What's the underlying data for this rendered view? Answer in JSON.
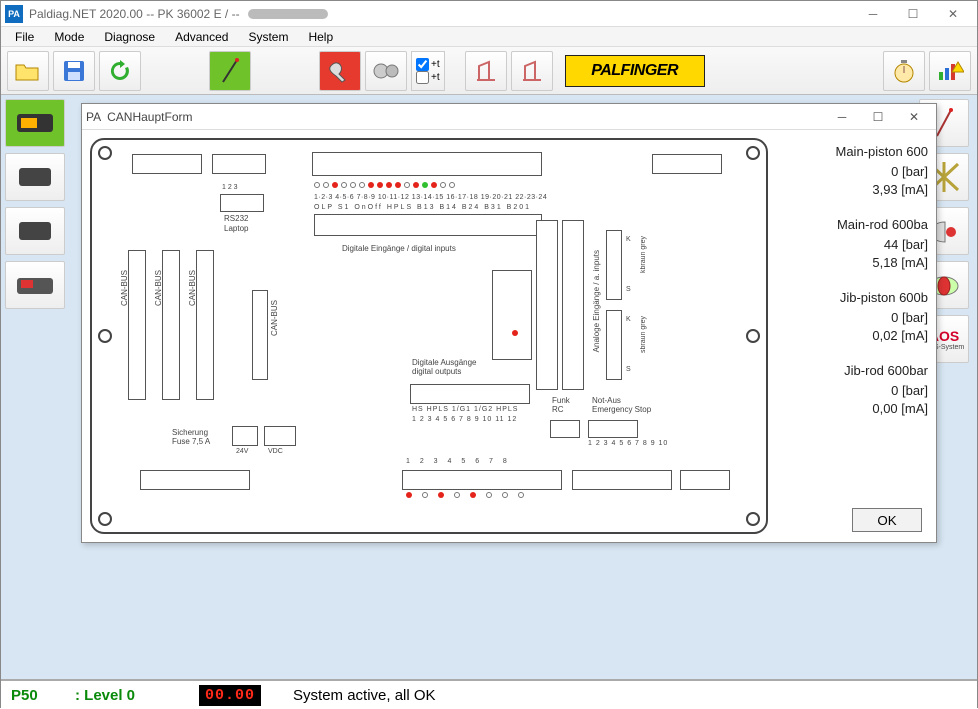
{
  "window": {
    "badge": "PA",
    "title": "Paldiag.NET  2020.00    -- PK 36002 E    /    --"
  },
  "menu": [
    "File",
    "Mode",
    "Diagnose",
    "Advanced",
    "System",
    "Help"
  ],
  "toolbar": {
    "checkbox1_label": "+t",
    "checkbox2_label": "+t",
    "brand": "PALFINGER"
  },
  "dialog": {
    "badge": "PA",
    "title": "CANHauptForm",
    "board_labels": {
      "rs232": "RS232",
      "laptop": "Laptop",
      "canbus": "CAN-BUS",
      "digital_inputs": "Digitale Eingänge / digital inputs",
      "digital_outputs": "Digitale Ausgänge\ndigital outputs",
      "fuse": "Sicherung\nFuse 7,5 A",
      "v24": "24V",
      "vdc": "VDC",
      "funk_rc": "Funk\nRC",
      "notaus": "Not-Aus\nEmergency Stop",
      "analog": "Analoge Eingänge / a. inputs",
      "pins_top": "1 2 3",
      "row1_nums": "1·2·3 4·5·6 7·8·9 10·11·12 13·14·15 16·17·18 19·20·21 22·23·24",
      "row1_lbls": "OLP  S1  OnOff HPLS  B13  B14  B24  B31  B201",
      "hs_row": "HS  HPLS 1/G1  1/G2  HPLS",
      "hs_nums": "1 2 3  4 5 6  7 8 9  10 11 12",
      "bot_nums": "1  2  3  4  5  6  7  8",
      "an_nums": "1 2 3 4 5  6 7 8 9 10",
      "k_top": "K",
      "s_top": "S",
      "k_bot": "K",
      "s_bot": "S",
      "kbraun": "kbraun  grey",
      "sbraun": "sbraun  grey"
    },
    "led_row": [
      "white",
      "white",
      "red",
      "white",
      "white",
      "white",
      "red",
      "red",
      "red",
      "red",
      "white",
      "red",
      "green",
      "red",
      "white",
      "white"
    ],
    "readouts": [
      {
        "name": "Main-piston 600",
        "v1": "0 [bar]",
        "v2": "3,93 [mA]"
      },
      {
        "name": "Main-rod 600ba",
        "v1": "44 [bar]",
        "v2": "5,18 [mA]"
      },
      {
        "name": "Jib-piston 600b",
        "v1": "0 [bar]",
        "v2": "0,02 [mA]"
      },
      {
        "name": "Jib-rod 600bar",
        "v1": "0 [bar]",
        "v2": "0,00 [mA]"
      }
    ],
    "ok": "OK"
  },
  "status": {
    "p50": "P50",
    "level": ": Level 0",
    "digits": "00.00",
    "message": "System active, all OK"
  },
  "colors": {
    "accent_green": "#6fc22a",
    "accent_red": "#e63a2e",
    "brand_yellow": "#ffd800",
    "workspace": "#d8e6f3",
    "led_red": "#e4231b",
    "led_green": "#2fbf2f",
    "status_green": "#0a8a0a",
    "digits_red": "#ff2a1a"
  }
}
